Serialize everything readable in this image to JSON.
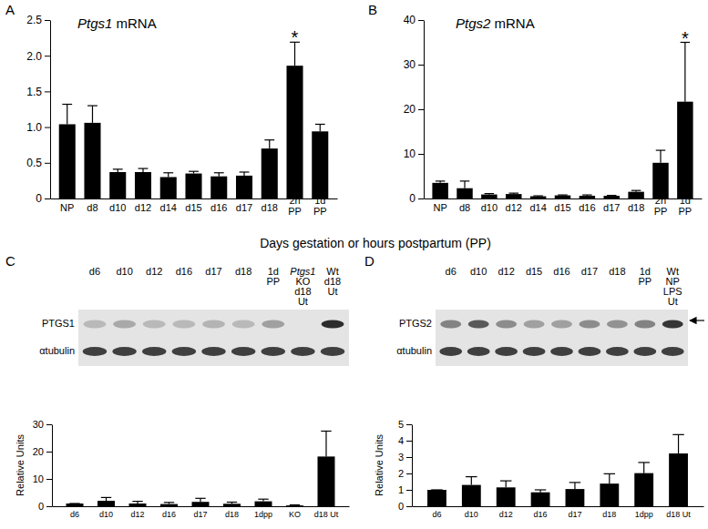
{
  "chart_data": [
    {
      "type": "bar",
      "panel": "A",
      "title": "Ptgs1 mRNA",
      "xlabel": "Days gestation or hours postpartum (PP)",
      "categories": [
        "NP",
        "d8",
        "d10",
        "d12",
        "d14",
        "d15",
        "d16",
        "d17",
        "d18",
        "2h PP",
        "1d PP"
      ],
      "values": [
        1.04,
        1.06,
        0.37,
        0.37,
        0.3,
        0.35,
        0.31,
        0.32,
        0.7,
        1.86,
        0.94
      ],
      "errors": [
        0.28,
        0.24,
        0.04,
        0.05,
        0.06,
        0.03,
        0.05,
        0.05,
        0.12,
        0.33,
        0.1
      ],
      "color": "#000000",
      "ylim": [
        0,
        2.5
      ],
      "yticks": [
        0,
        0.5,
        {
          "value": 1,
          "label": "1.0"
        },
        1.5,
        {
          "value": 2,
          "label": "2.0"
        },
        2.5
      ],
      "annotations": [
        {
          "text": "*",
          "category": "2h PP"
        }
      ]
    },
    {
      "type": "bar",
      "panel": "B",
      "title": "Ptgs2 mRNA",
      "categories": [
        "NP",
        "d8",
        "d10",
        "d12",
        "d14",
        "d15",
        "d16",
        "d17",
        "d18",
        "2h PP",
        "1d PP"
      ],
      "values": [
        3.5,
        2.3,
        0.9,
        1.0,
        0.5,
        0.7,
        0.6,
        0.6,
        1.5,
        8.0,
        21.7
      ],
      "errors": [
        0.4,
        1.6,
        0.2,
        0.2,
        0.1,
        0.1,
        0.2,
        0.1,
        0.3,
        2.8,
        13.3
      ],
      "color": "#000000",
      "ylim": [
        0,
        40
      ],
      "yticks": [
        0,
        10,
        20,
        30,
        40
      ],
      "annotations": [
        {
          "text": "*",
          "category": "1d PP"
        }
      ]
    },
    {
      "type": "bar",
      "panel": "C",
      "ylabel": "Relative Units",
      "blot": {
        "lanes": [
          "d6",
          "d10",
          "d12",
          "d16",
          "d17",
          "d18",
          "1d PP",
          "Ptgs1 KO d18 Ut",
          "Wt d18 Ut"
        ],
        "rows": [
          "PTGS1",
          "αtubulin"
        ]
      },
      "categories": [
        "d6",
        "d10",
        "d12",
        "d16",
        "d17",
        "d18",
        "1dpp",
        "KO",
        "d18 Ut"
      ],
      "values": [
        1.0,
        2.0,
        1.0,
        0.8,
        1.6,
        0.9,
        1.8,
        0.3,
        18.2
      ],
      "errors": [
        0,
        1.2,
        0.8,
        0.6,
        1.3,
        0.6,
        0.8,
        0.2,
        9.3
      ],
      "color": "#000000",
      "ylim": [
        0,
        30
      ],
      "yticks": [
        0,
        10,
        20,
        30
      ]
    },
    {
      "type": "bar",
      "panel": "D",
      "ylabel": "Relative Units",
      "blot": {
        "lanes": [
          "d6",
          "d10",
          "d12",
          "d15",
          "d16",
          "d17",
          "d18",
          "1d PP",
          "Wt NP LPS Ut"
        ],
        "rows": [
          "PTGS2",
          "αtubulin"
        ]
      },
      "categories": [
        "d6",
        "d10",
        "d12",
        "d16",
        "d17",
        "d18",
        "1dpp",
        "d18 Ut"
      ],
      "values": [
        1.0,
        1.3,
        1.15,
        0.85,
        1.05,
        1.38,
        2.02,
        3.22
      ],
      "errors": [
        0,
        0.5,
        0.4,
        0.15,
        0.4,
        0.6,
        0.65,
        1.15
      ],
      "color": "#000000",
      "ylim": [
        0,
        5
      ],
      "yticks": [
        0,
        1,
        2,
        3,
        4,
        5
      ]
    }
  ]
}
